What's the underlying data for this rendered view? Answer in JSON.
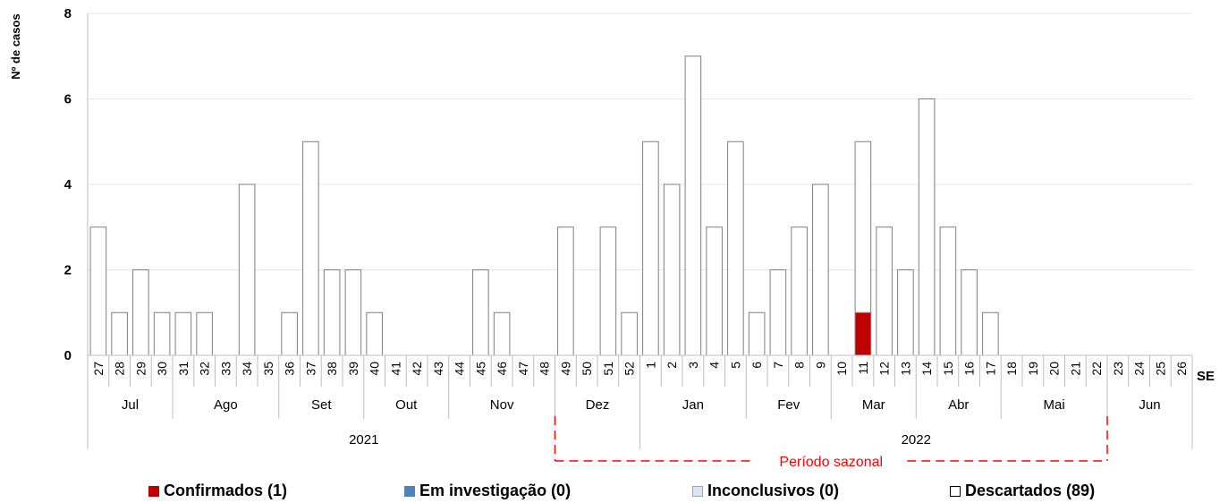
{
  "chart_data": {
    "type": "bar",
    "stacked": true,
    "ylabel": "Nº de casos",
    "xlabel": "SE",
    "ylim": [
      0,
      8
    ],
    "yticks": [
      0,
      2,
      4,
      6,
      8
    ],
    "grid": true,
    "categories": [
      "27",
      "28",
      "29",
      "30",
      "31",
      "32",
      "33",
      "34",
      "35",
      "36",
      "37",
      "38",
      "39",
      "40",
      "41",
      "42",
      "43",
      "44",
      "45",
      "46",
      "47",
      "48",
      "49",
      "50",
      "51",
      "52",
      "1",
      "2",
      "3",
      "4",
      "5",
      "6",
      "7",
      "8",
      "9",
      "10",
      "11",
      "12",
      "13",
      "14",
      "15",
      "16",
      "17",
      "18",
      "19",
      "20",
      "21",
      "22",
      "23",
      "24",
      "25",
      "26"
    ],
    "series": [
      {
        "name": "Confirmados (1)",
        "color": "#c00000",
        "values": [
          0,
          0,
          0,
          0,
          0,
          0,
          0,
          0,
          0,
          0,
          0,
          0,
          0,
          0,
          0,
          0,
          0,
          0,
          0,
          0,
          0,
          0,
          0,
          0,
          0,
          0,
          0,
          0,
          0,
          0,
          0,
          0,
          0,
          0,
          0,
          0,
          1,
          0,
          0,
          0,
          0,
          0,
          0,
          0,
          0,
          0,
          0,
          0,
          0,
          0,
          0,
          0
        ]
      },
      {
        "name": "Em investigação (0)",
        "color": "#4f81bd",
        "values": [
          0,
          0,
          0,
          0,
          0,
          0,
          0,
          0,
          0,
          0,
          0,
          0,
          0,
          0,
          0,
          0,
          0,
          0,
          0,
          0,
          0,
          0,
          0,
          0,
          0,
          0,
          0,
          0,
          0,
          0,
          0,
          0,
          0,
          0,
          0,
          0,
          0,
          0,
          0,
          0,
          0,
          0,
          0,
          0,
          0,
          0,
          0,
          0,
          0,
          0,
          0,
          0
        ]
      },
      {
        "name": "Inconclusivos (0)",
        "color": "#dce6f2",
        "values": [
          0,
          0,
          0,
          0,
          0,
          0,
          0,
          0,
          0,
          0,
          0,
          0,
          0,
          0,
          0,
          0,
          0,
          0,
          0,
          0,
          0,
          0,
          0,
          0,
          0,
          0,
          0,
          0,
          0,
          0,
          0,
          0,
          0,
          0,
          0,
          0,
          0,
          0,
          0,
          0,
          0,
          0,
          0,
          0,
          0,
          0,
          0,
          0,
          0,
          0,
          0,
          0
        ]
      },
      {
        "name": "Descartados (89)",
        "color": "#ffffff",
        "values": [
          3,
          1,
          2,
          1,
          1,
          1,
          0,
          4,
          0,
          1,
          5,
          2,
          2,
          1,
          0,
          0,
          0,
          0,
          2,
          1,
          0,
          0,
          3,
          0,
          3,
          1,
          5,
          4,
          7,
          3,
          5,
          1,
          2,
          3,
          4,
          0,
          4,
          3,
          2,
          6,
          3,
          2,
          1,
          0,
          0,
          0,
          0,
          0,
          0,
          0,
          0,
          0
        ]
      }
    ],
    "months": [
      {
        "label": "Jul",
        "start": 0,
        "end": 3
      },
      {
        "label": "Ago",
        "start": 4,
        "end": 8
      },
      {
        "label": "Set",
        "start": 9,
        "end": 12
      },
      {
        "label": "Out",
        "start": 13,
        "end": 16
      },
      {
        "label": "Nov",
        "start": 17,
        "end": 21
      },
      {
        "label": "Dez",
        "start": 22,
        "end": 25
      },
      {
        "label": "Jan",
        "start": 26,
        "end": 30
      },
      {
        "label": "Fev",
        "start": 31,
        "end": 34
      },
      {
        "label": "Mar",
        "start": 35,
        "end": 38
      },
      {
        "label": "Abr",
        "start": 39,
        "end": 42
      },
      {
        "label": "Mai",
        "start": 43,
        "end": 47
      },
      {
        "label": "Jun",
        "start": 48,
        "end": 51
      }
    ],
    "years": [
      {
        "label": "2021",
        "start": 0,
        "end": 25
      },
      {
        "label": "2022",
        "start": 26,
        "end": 51
      }
    ],
    "annotation": {
      "label": "Período sazonal",
      "start": 22,
      "end": 47,
      "color": "#ff0000"
    },
    "legend_position": "bottom"
  }
}
